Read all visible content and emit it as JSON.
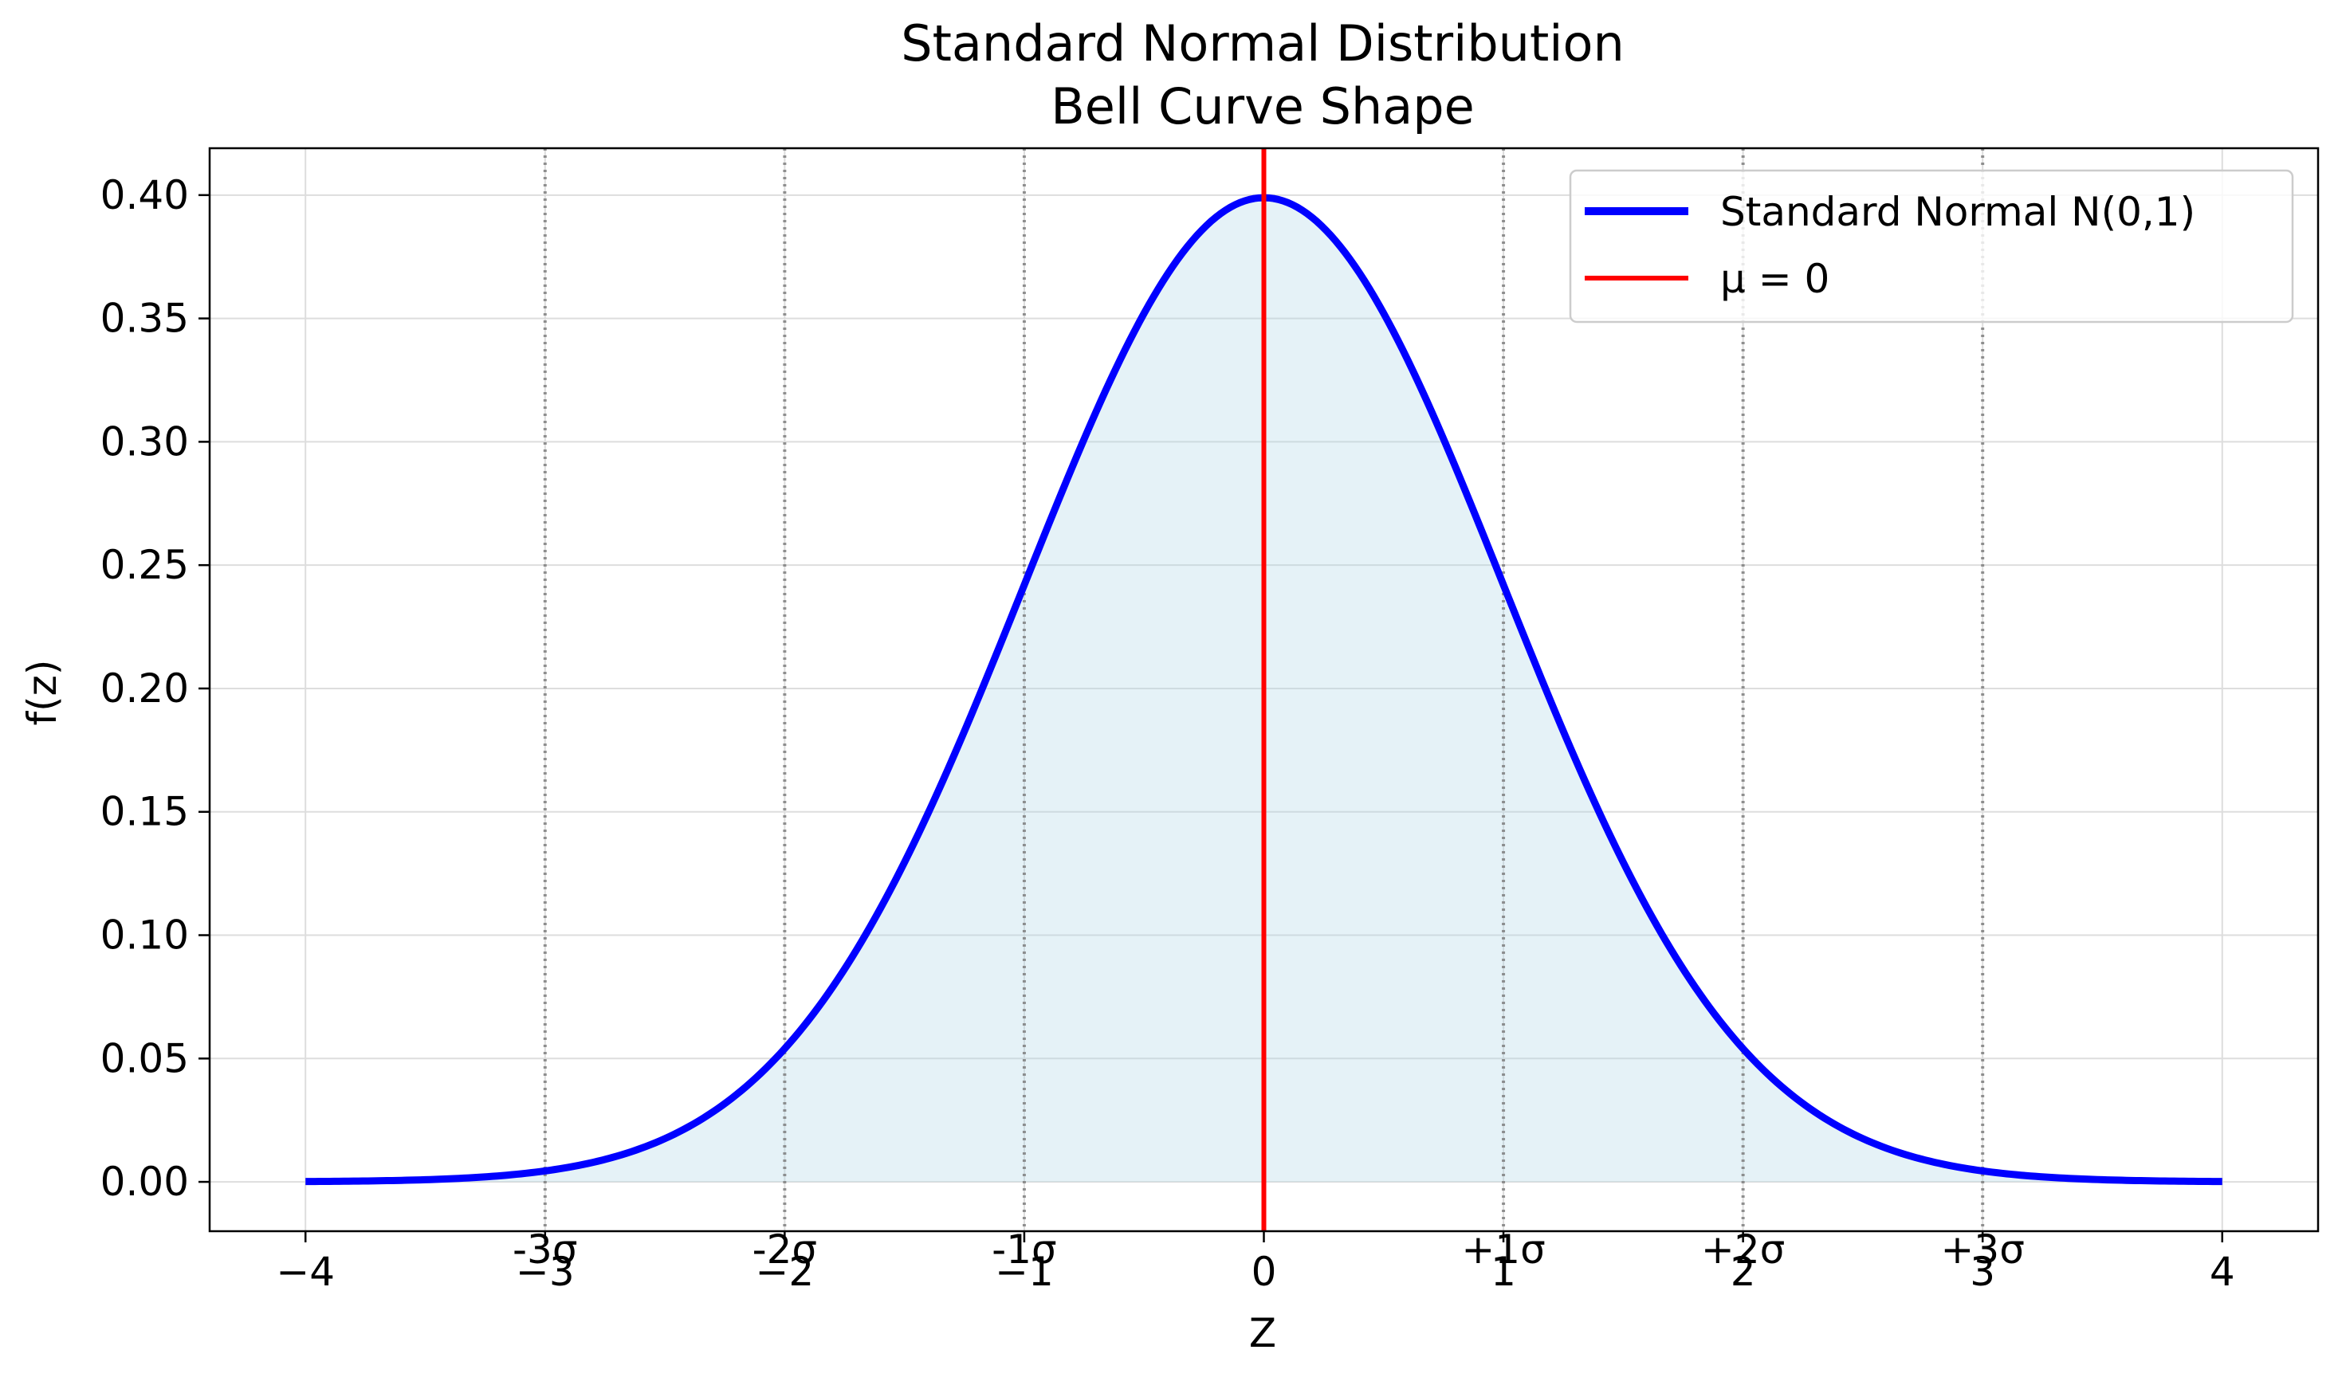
{
  "chart_data": {
    "type": "line",
    "title": "Standard Normal Distribution",
    "subtitle": "Bell Curve Shape",
    "xlabel": "Z",
    "ylabel": "f(z)",
    "xlim": [
      -4.4,
      4.4
    ],
    "ylim": [
      -0.02,
      0.419
    ],
    "x_ticks": [
      -4,
      -3,
      -2,
      -1,
      0,
      1,
      2,
      3,
      4
    ],
    "x_tick_labels": [
      "−4",
      "−3",
      "−2",
      "−1",
      "0",
      "1",
      "2",
      "3",
      "4"
    ],
    "y_ticks": [
      0.0,
      0.05,
      0.1,
      0.15,
      0.2,
      0.25,
      0.3,
      0.35,
      0.4
    ],
    "y_tick_labels": [
      "0.00",
      "0.05",
      "0.10",
      "0.15",
      "0.20",
      "0.25",
      "0.30",
      "0.35",
      "0.40"
    ],
    "grid": true,
    "legend_position": "top-right",
    "series": [
      {
        "name": "Standard Normal N(0,1)",
        "color": "#0000ff",
        "x": [
          -4.0,
          -3.75,
          -3.5,
          -3.25,
          -3.0,
          -2.75,
          -2.5,
          -2.25,
          -2.0,
          -1.75,
          -1.5,
          -1.25,
          -1.0,
          -0.75,
          -0.5,
          -0.25,
          0.0,
          0.25,
          0.5,
          0.75,
          1.0,
          1.25,
          1.5,
          1.75,
          2.0,
          2.25,
          2.5,
          2.75,
          3.0,
          3.25,
          3.5,
          3.75,
          4.0
        ],
        "y": [
          0.0001,
          0.0004,
          0.0009,
          0.002,
          0.0044,
          0.0091,
          0.0175,
          0.0317,
          0.054,
          0.0863,
          0.1295,
          0.1826,
          0.242,
          0.3011,
          0.3521,
          0.3867,
          0.3989,
          0.3867,
          0.3521,
          0.3011,
          0.242,
          0.1826,
          0.1295,
          0.0863,
          0.054,
          0.0317,
          0.0175,
          0.0091,
          0.0044,
          0.002,
          0.0009,
          0.0004,
          0.0001
        ]
      },
      {
        "name": "μ = 0",
        "color": "#ff0000",
        "x": [
          0,
          0
        ],
        "y": [
          -0.02,
          0.419
        ]
      }
    ],
    "fill_color": "#add8e6",
    "sigma_lines": [
      {
        "x": -3,
        "label": "-3σ"
      },
      {
        "x": -2,
        "label": "-2σ"
      },
      {
        "x": -1,
        "label": "-1σ"
      },
      {
        "x": 1,
        "label": "+1σ"
      },
      {
        "x": 2,
        "label": "+2σ"
      },
      {
        "x": 3,
        "label": "+3σ"
      }
    ]
  }
}
